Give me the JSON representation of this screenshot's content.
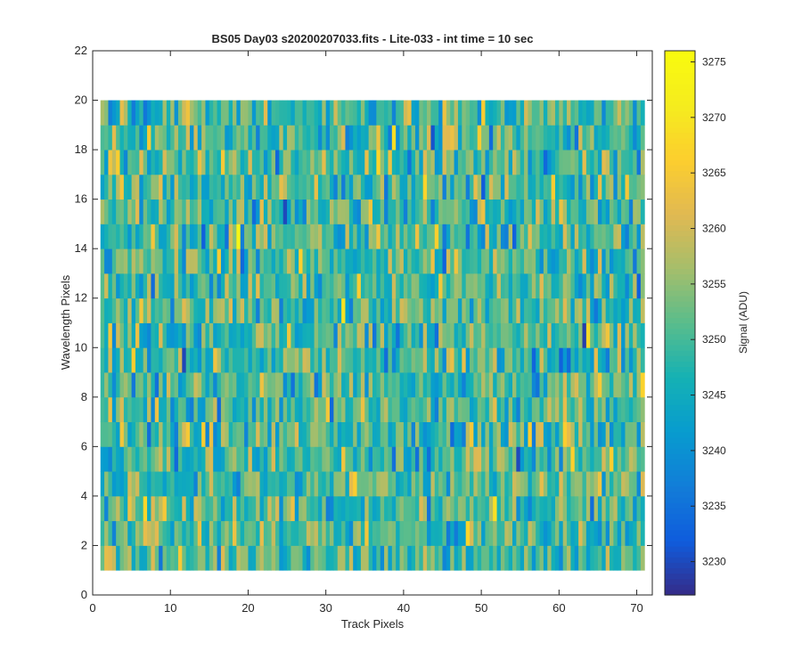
{
  "chart_data": {
    "type": "heatmap",
    "title": "BS05 Day03  s20200207033.fits - Lite-033 - int time = 10 sec",
    "xlabel": "Track Pixels",
    "ylabel": "Wavelength Pixels",
    "colorbar_label": "Signal (ADU)",
    "colormap": "parula",
    "xlim": [
      0,
      72
    ],
    "ylim": [
      0,
      22
    ],
    "clim": [
      3227,
      3276
    ],
    "xticks": [
      0,
      10,
      20,
      30,
      40,
      50,
      60,
      70
    ],
    "yticks": [
      0,
      2,
      4,
      6,
      8,
      10,
      12,
      14,
      16,
      18,
      20,
      22
    ],
    "cticks": [
      3230,
      3235,
      3240,
      3245,
      3250,
      3255,
      3260,
      3265,
      3270,
      3275
    ],
    "x_range": [
      1,
      71
    ],
    "y_range": [
      1,
      20
    ],
    "mean": 3250,
    "std": 6.5,
    "hot_spots": [
      {
        "x": 18.5,
        "y": 14.5,
        "value": 3274
      },
      {
        "x": 52,
        "y": 20.5,
        "value": 3266
      },
      {
        "x": 60.5,
        "y": 6.5,
        "value": 3266
      },
      {
        "x": 65,
        "y": 8.5,
        "value": 3265
      },
      {
        "x": 3,
        "y": 17.5,
        "value": 3266
      },
      {
        "x": 16.5,
        "y": 17.5,
        "value": 3265
      },
      {
        "x": 35.5,
        "y": 15.5,
        "value": 3264
      },
      {
        "x": 70.5,
        "y": 20.5,
        "value": 3267
      }
    ],
    "cold_spots": [
      {
        "x": 24.5,
        "y": 15.5,
        "value": 3230
      },
      {
        "x": 54.5,
        "y": 5.5,
        "value": 3230
      },
      {
        "x": 63,
        "y": 10.5,
        "value": 3229
      },
      {
        "x": 43.5,
        "y": 18.5,
        "value": 3231
      },
      {
        "x": 32.5,
        "y": 20.5,
        "value": 3231
      }
    ]
  }
}
